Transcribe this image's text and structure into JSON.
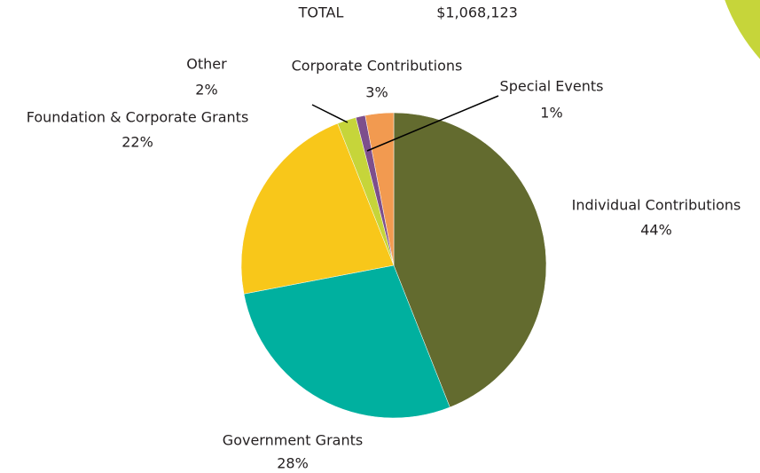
{
  "chart_data": {
    "type": "pie",
    "total_label": "TOTAL",
    "total_value": "$1,068,123",
    "categories": [
      "Individual Contributions",
      "Government Grants",
      "Foundation & Corporate Grants",
      "Other",
      "Special Events",
      "Corporate Contributions"
    ],
    "values": [
      44,
      28,
      22,
      2,
      1,
      3
    ],
    "value_labels": [
      "44%",
      "28%",
      "22%",
      "2%",
      "1%",
      "3%"
    ],
    "colors": [
      "#636b2f",
      "#00b09f",
      "#f8c71a",
      "#c6d53a",
      "#7d4f8c",
      "#f29a50"
    ]
  }
}
